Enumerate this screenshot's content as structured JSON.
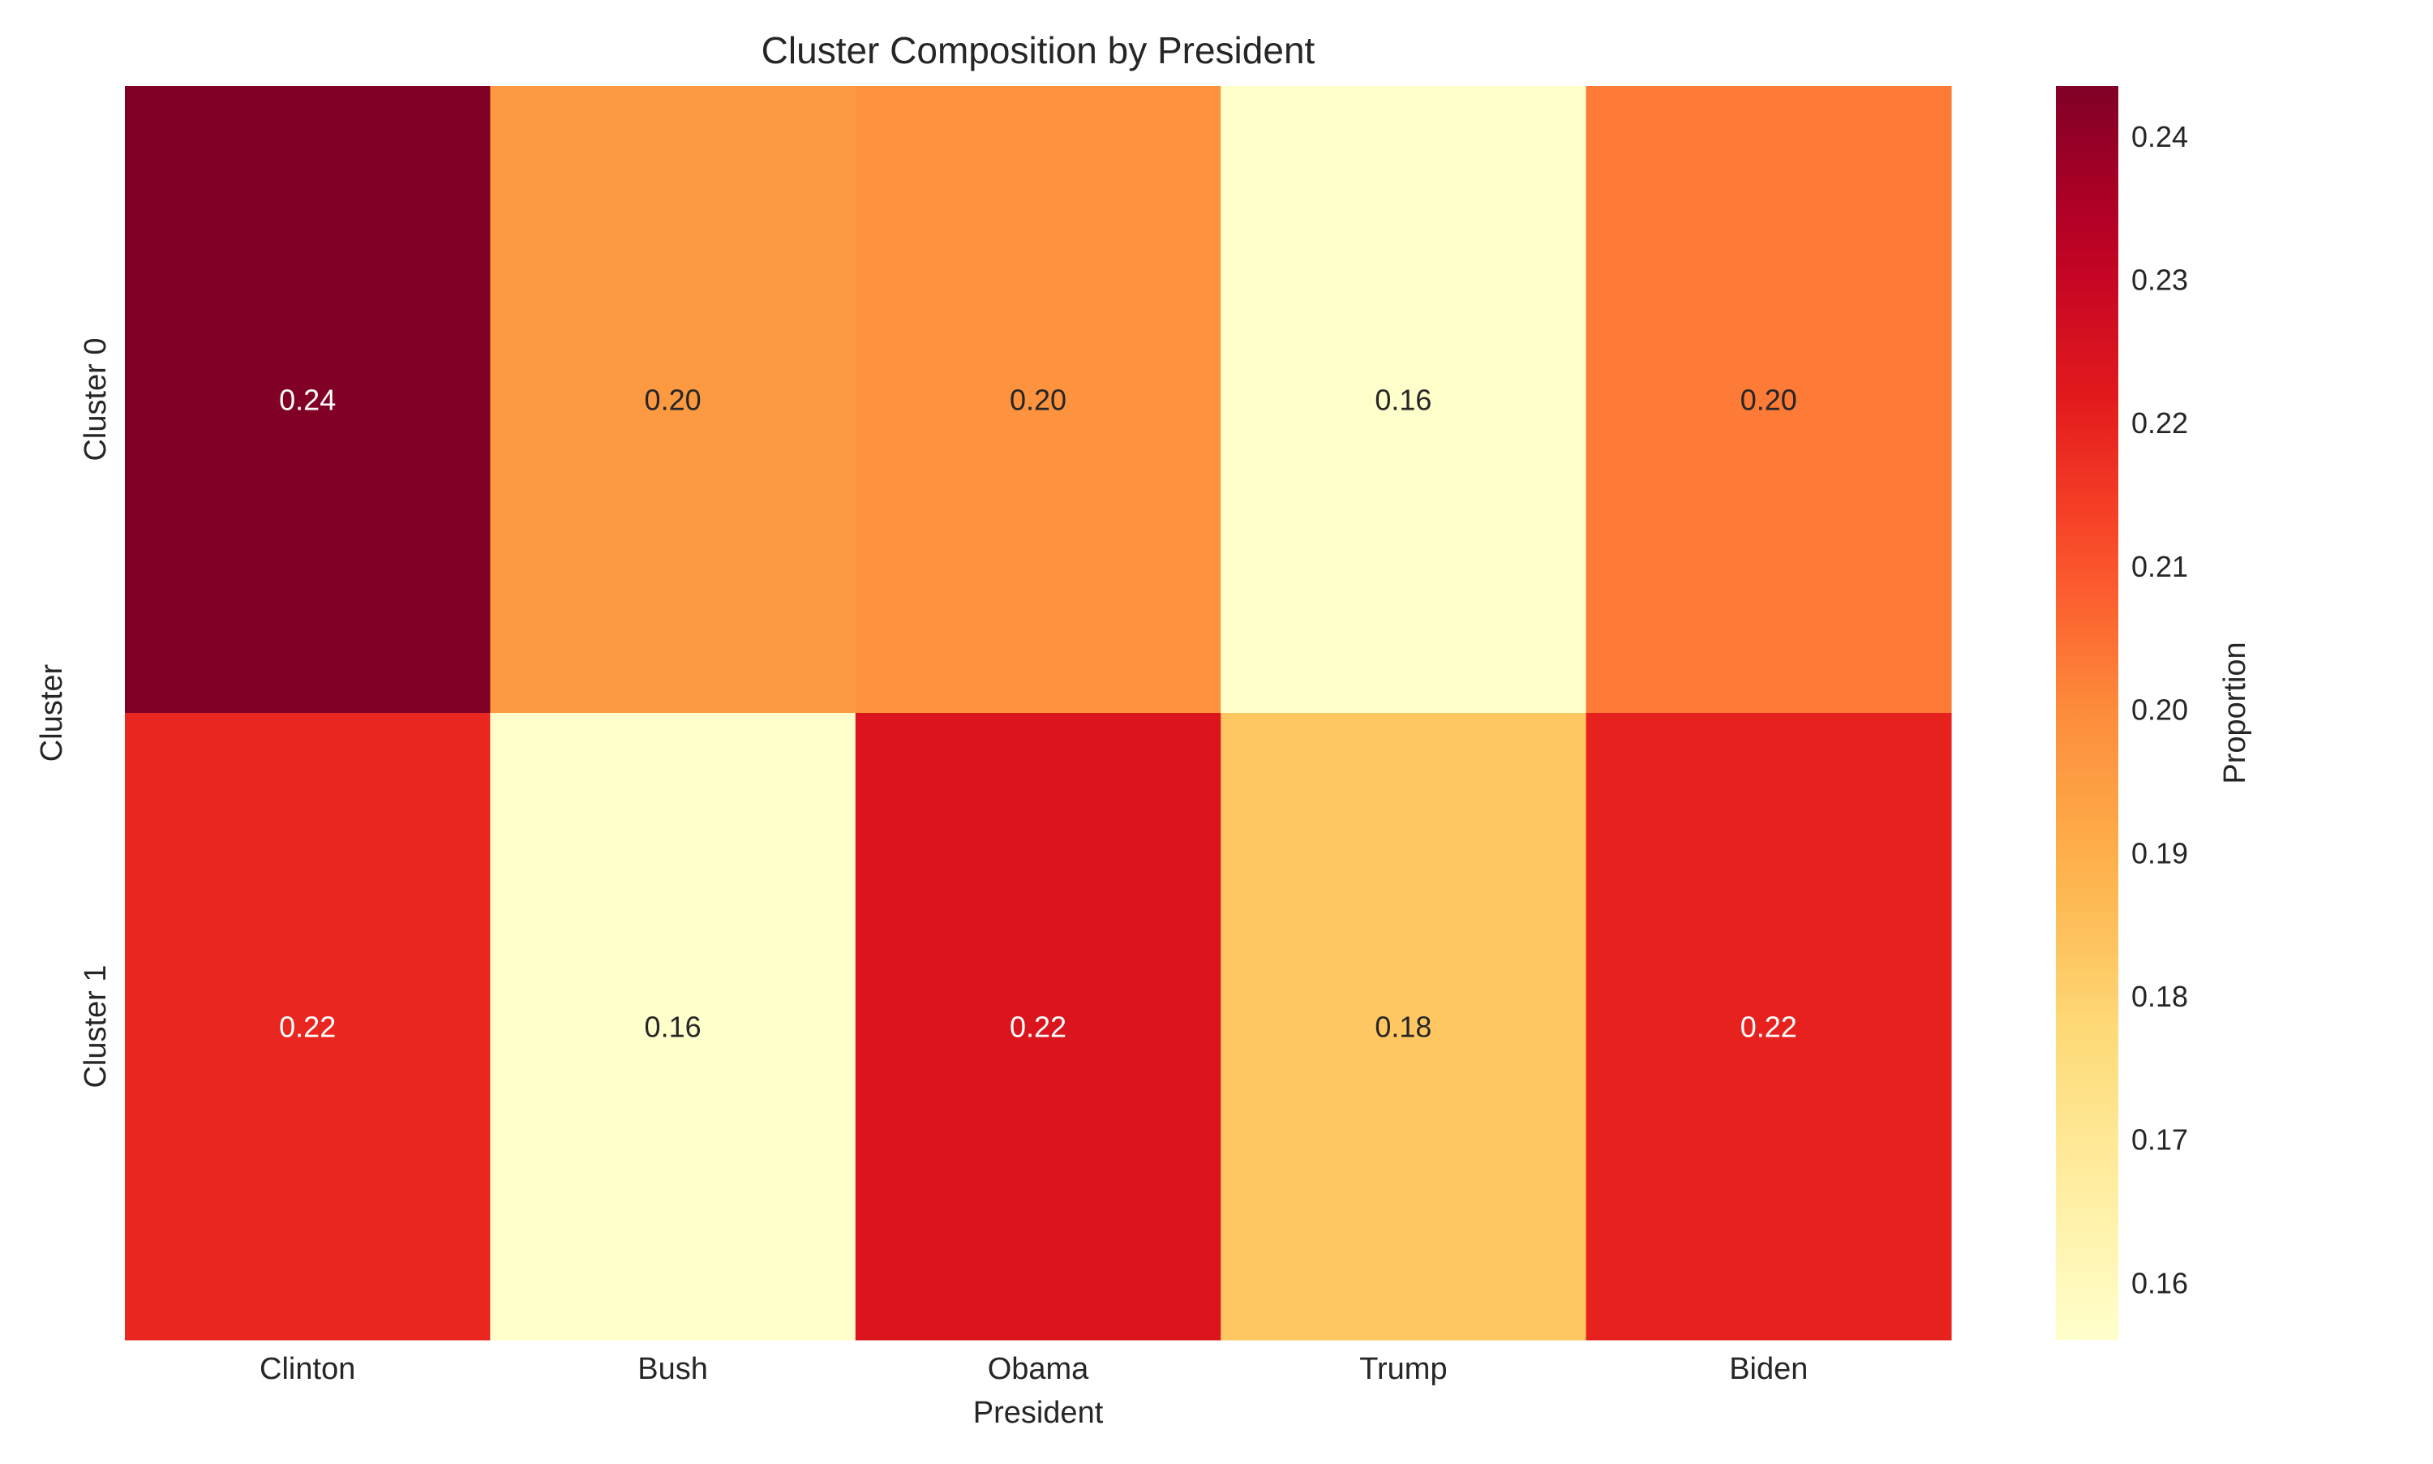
{
  "chart_data": {
    "type": "heatmap",
    "title": "Cluster Composition by President",
    "xlabel": "President",
    "ylabel": "Cluster",
    "x_categories": [
      "Clinton",
      "Bush",
      "Obama",
      "Trump",
      "Biden"
    ],
    "y_categories": [
      "Cluster 0",
      "Cluster 1"
    ],
    "values": [
      [
        0.2435,
        0.196,
        0.198,
        0.156,
        0.203
      ],
      [
        0.219,
        0.156,
        0.224,
        0.183,
        0.22
      ]
    ],
    "annotations": [
      [
        "0.24",
        "0.20",
        "0.20",
        "0.16",
        "0.20"
      ],
      [
        "0.22",
        "0.16",
        "0.22",
        "0.18",
        "0.22"
      ]
    ],
    "colormap": "YlOrRd",
    "colorbar": {
      "label": "Proportion",
      "range": [
        0.156,
        0.2435
      ],
      "ticks": [
        "0.16",
        "0.17",
        "0.18",
        "0.19",
        "0.20",
        "0.21",
        "0.22",
        "0.23",
        "0.24"
      ]
    },
    "grid": false
  }
}
